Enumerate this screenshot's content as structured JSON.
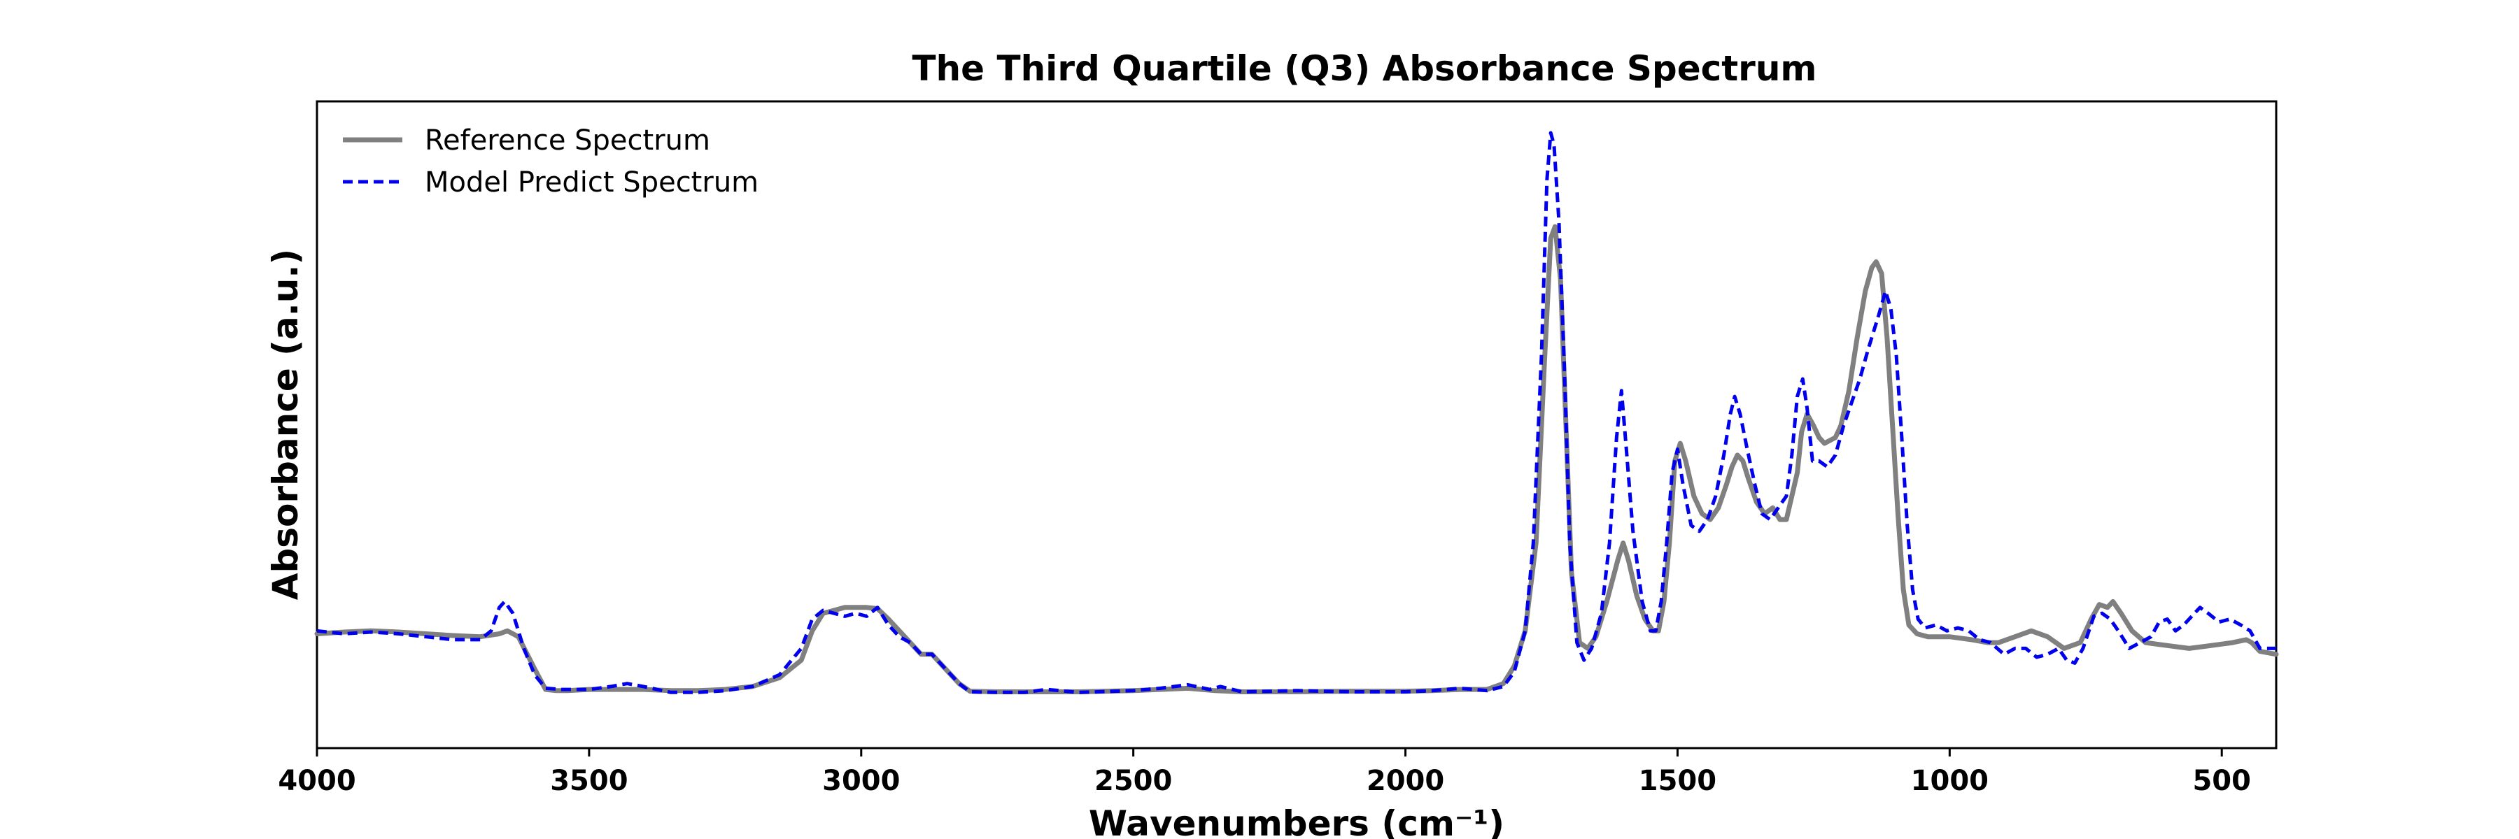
{
  "chart_data": {
    "type": "line",
    "title": "The Third Quartile (Q3) Absorbance Spectrum",
    "xlabel": "Wavenumbers (cm⁻¹)",
    "ylabel": "Absorbance (a.u.)",
    "xlim": [
      4000,
      400
    ],
    "ylim": [
      0,
      1.0
    ],
    "x_reversed": true,
    "y_ticks_visible": false,
    "xticks": [
      4000,
      3500,
      3000,
      2500,
      2000,
      1500,
      1000,
      500
    ],
    "xtick_labels": [
      "4000",
      "3500",
      "3000",
      "2500",
      "2000",
      "1500",
      "1000",
      "500"
    ],
    "grid": false,
    "legend": "top-left",
    "series": [
      {
        "name": "Reference Spectrum",
        "color": "#808080",
        "style": "solid",
        "points": [
          [
            4000,
            0.145
          ],
          [
            3950,
            0.148
          ],
          [
            3900,
            0.15
          ],
          [
            3850,
            0.148
          ],
          [
            3800,
            0.145
          ],
          [
            3750,
            0.142
          ],
          [
            3700,
            0.14
          ],
          [
            3665,
            0.145
          ],
          [
            3650,
            0.15
          ],
          [
            3630,
            0.14
          ],
          [
            3600,
            0.085
          ],
          [
            3580,
            0.05
          ],
          [
            3560,
            0.048
          ],
          [
            3540,
            0.048
          ],
          [
            3500,
            0.05
          ],
          [
            3450,
            0.05
          ],
          [
            3400,
            0.05
          ],
          [
            3350,
            0.048
          ],
          [
            3300,
            0.048
          ],
          [
            3250,
            0.05
          ],
          [
            3200,
            0.055
          ],
          [
            3150,
            0.07
          ],
          [
            3110,
            0.1
          ],
          [
            3090,
            0.15
          ],
          [
            3070,
            0.18
          ],
          [
            3050,
            0.185
          ],
          [
            3030,
            0.19
          ],
          [
            3010,
            0.19
          ],
          [
            2990,
            0.19
          ],
          [
            2970,
            0.188
          ],
          [
            2950,
            0.17
          ],
          [
            2930,
            0.15
          ],
          [
            2910,
            0.13
          ],
          [
            2890,
            0.11
          ],
          [
            2870,
            0.11
          ],
          [
            2850,
            0.09
          ],
          [
            2820,
            0.06
          ],
          [
            2800,
            0.047
          ],
          [
            2750,
            0.046
          ],
          [
            2700,
            0.046
          ],
          [
            2600,
            0.046
          ],
          [
            2500,
            0.048
          ],
          [
            2450,
            0.05
          ],
          [
            2400,
            0.052
          ],
          [
            2350,
            0.048
          ],
          [
            2300,
            0.046
          ],
          [
            2200,
            0.046
          ],
          [
            2100,
            0.047
          ],
          [
            2000,
            0.047
          ],
          [
            1950,
            0.048
          ],
          [
            1900,
            0.05
          ],
          [
            1850,
            0.05
          ],
          [
            1820,
            0.06
          ],
          [
            1800,
            0.09
          ],
          [
            1780,
            0.15
          ],
          [
            1760,
            0.3
          ],
          [
            1745,
            0.6
          ],
          [
            1733,
            0.82
          ],
          [
            1725,
            0.84
          ],
          [
            1715,
            0.75
          ],
          [
            1705,
            0.5
          ],
          [
            1695,
            0.25
          ],
          [
            1680,
            0.13
          ],
          [
            1665,
            0.12
          ],
          [
            1650,
            0.14
          ],
          [
            1630,
            0.2
          ],
          [
            1610,
            0.27
          ],
          [
            1600,
            0.3
          ],
          [
            1590,
            0.27
          ],
          [
            1575,
            0.21
          ],
          [
            1560,
            0.17
          ],
          [
            1545,
            0.15
          ],
          [
            1535,
            0.15
          ],
          [
            1525,
            0.2
          ],
          [
            1515,
            0.3
          ],
          [
            1505,
            0.44
          ],
          [
            1495,
            0.47
          ],
          [
            1485,
            0.44
          ],
          [
            1470,
            0.38
          ],
          [
            1455,
            0.35
          ],
          [
            1440,
            0.34
          ],
          [
            1425,
            0.36
          ],
          [
            1410,
            0.4
          ],
          [
            1400,
            0.43
          ],
          [
            1390,
            0.45
          ],
          [
            1380,
            0.44
          ],
          [
            1370,
            0.41
          ],
          [
            1355,
            0.37
          ],
          [
            1340,
            0.35
          ],
          [
            1325,
            0.36
          ],
          [
            1312,
            0.34
          ],
          [
            1300,
            0.34
          ],
          [
            1290,
            0.38
          ],
          [
            1280,
            0.42
          ],
          [
            1272,
            0.49
          ],
          [
            1262,
            0.52
          ],
          [
            1250,
            0.5
          ],
          [
            1240,
            0.48
          ],
          [
            1230,
            0.47
          ],
          [
            1210,
            0.48
          ],
          [
            1200,
            0.5
          ],
          [
            1185,
            0.56
          ],
          [
            1170,
            0.65
          ],
          [
            1155,
            0.73
          ],
          [
            1143,
            0.77
          ],
          [
            1135,
            0.78
          ],
          [
            1125,
            0.76
          ],
          [
            1115,
            0.65
          ],
          [
            1105,
            0.5
          ],
          [
            1095,
            0.35
          ],
          [
            1085,
            0.22
          ],
          [
            1075,
            0.16
          ],
          [
            1060,
            0.145
          ],
          [
            1040,
            0.14
          ],
          [
            1000,
            0.14
          ],
          [
            960,
            0.135
          ],
          [
            930,
            0.13
          ],
          [
            910,
            0.13
          ],
          [
            880,
            0.14
          ],
          [
            850,
            0.15
          ],
          [
            820,
            0.14
          ],
          [
            790,
            0.12
          ],
          [
            760,
            0.13
          ],
          [
            740,
            0.17
          ],
          [
            725,
            0.195
          ],
          [
            710,
            0.19
          ],
          [
            700,
            0.2
          ],
          [
            685,
            0.18
          ],
          [
            665,
            0.15
          ],
          [
            640,
            0.13
          ],
          [
            600,
            0.125
          ],
          [
            560,
            0.12
          ],
          [
            520,
            0.125
          ],
          [
            480,
            0.13
          ],
          [
            455,
            0.135
          ],
          [
            445,
            0.13
          ],
          [
            430,
            0.115
          ],
          [
            400,
            0.11
          ]
        ]
      },
      {
        "name": "Model Predict Spectrum",
        "color": "#0000ee",
        "style": "dashed",
        "points": [
          [
            4000,
            0.15
          ],
          [
            3950,
            0.145
          ],
          [
            3900,
            0.148
          ],
          [
            3850,
            0.145
          ],
          [
            3800,
            0.14
          ],
          [
            3750,
            0.135
          ],
          [
            3700,
            0.135
          ],
          [
            3680,
            0.15
          ],
          [
            3665,
            0.19
          ],
          [
            3655,
            0.2
          ],
          [
            3640,
            0.18
          ],
          [
            3620,
            0.12
          ],
          [
            3600,
            0.075
          ],
          [
            3580,
            0.052
          ],
          [
            3550,
            0.05
          ],
          [
            3500,
            0.05
          ],
          [
            3460,
            0.055
          ],
          [
            3430,
            0.06
          ],
          [
            3400,
            0.055
          ],
          [
            3350,
            0.045
          ],
          [
            3300,
            0.045
          ],
          [
            3250,
            0.048
          ],
          [
            3200,
            0.055
          ],
          [
            3150,
            0.075
          ],
          [
            3110,
            0.12
          ],
          [
            3090,
            0.17
          ],
          [
            3070,
            0.185
          ],
          [
            3050,
            0.18
          ],
          [
            3030,
            0.175
          ],
          [
            3010,
            0.18
          ],
          [
            2990,
            0.175
          ],
          [
            2970,
            0.19
          ],
          [
            2950,
            0.16
          ],
          [
            2930,
            0.14
          ],
          [
            2910,
            0.13
          ],
          [
            2890,
            0.11
          ],
          [
            2870,
            0.11
          ],
          [
            2850,
            0.09
          ],
          [
            2820,
            0.06
          ],
          [
            2800,
            0.046
          ],
          [
            2750,
            0.045
          ],
          [
            2700,
            0.045
          ],
          [
            2660,
            0.05
          ],
          [
            2600,
            0.045
          ],
          [
            2500,
            0.048
          ],
          [
            2450,
            0.052
          ],
          [
            2400,
            0.058
          ],
          [
            2360,
            0.05
          ],
          [
            2340,
            0.055
          ],
          [
            2300,
            0.046
          ],
          [
            2200,
            0.048
          ],
          [
            2100,
            0.046
          ],
          [
            2000,
            0.046
          ],
          [
            1950,
            0.048
          ],
          [
            1900,
            0.052
          ],
          [
            1850,
            0.048
          ],
          [
            1820,
            0.055
          ],
          [
            1800,
            0.08
          ],
          [
            1780,
            0.15
          ],
          [
            1765,
            0.3
          ],
          [
            1750,
            0.62
          ],
          [
            1740,
            0.92
          ],
          [
            1733,
            1.0
          ],
          [
            1727,
            0.98
          ],
          [
            1718,
            0.85
          ],
          [
            1708,
            0.6
          ],
          [
            1698,
            0.3
          ],
          [
            1685,
            0.13
          ],
          [
            1672,
            0.1
          ],
          [
            1658,
            0.12
          ],
          [
            1640,
            0.18
          ],
          [
            1625,
            0.3
          ],
          [
            1612,
            0.48
          ],
          [
            1603,
            0.56
          ],
          [
            1595,
            0.47
          ],
          [
            1582,
            0.32
          ],
          [
            1565,
            0.2
          ],
          [
            1550,
            0.15
          ],
          [
            1540,
            0.15
          ],
          [
            1530,
            0.2
          ],
          [
            1520,
            0.3
          ],
          [
            1510,
            0.42
          ],
          [
            1500,
            0.46
          ],
          [
            1490,
            0.4
          ],
          [
            1475,
            0.33
          ],
          [
            1460,
            0.32
          ],
          [
            1445,
            0.34
          ],
          [
            1430,
            0.38
          ],
          [
            1415,
            0.45
          ],
          [
            1403,
            0.52
          ],
          [
            1395,
            0.55
          ],
          [
            1385,
            0.52
          ],
          [
            1372,
            0.46
          ],
          [
            1358,
            0.4
          ],
          [
            1345,
            0.35
          ],
          [
            1330,
            0.34
          ],
          [
            1315,
            0.36
          ],
          [
            1300,
            0.38
          ],
          [
            1290,
            0.45
          ],
          [
            1280,
            0.55
          ],
          [
            1270,
            0.58
          ],
          [
            1262,
            0.53
          ],
          [
            1252,
            0.44
          ],
          [
            1240,
            0.44
          ],
          [
            1225,
            0.43
          ],
          [
            1210,
            0.45
          ],
          [
            1195,
            0.5
          ],
          [
            1180,
            0.54
          ],
          [
            1165,
            0.58
          ],
          [
            1150,
            0.63
          ],
          [
            1130,
            0.69
          ],
          [
            1118,
            0.73
          ],
          [
            1108,
            0.7
          ],
          [
            1098,
            0.62
          ],
          [
            1088,
            0.48
          ],
          [
            1078,
            0.33
          ],
          [
            1068,
            0.22
          ],
          [
            1058,
            0.17
          ],
          [
            1045,
            0.155
          ],
          [
            1025,
            0.16
          ],
          [
            1005,
            0.15
          ],
          [
            985,
            0.155
          ],
          [
            965,
            0.15
          ],
          [
            945,
            0.135
          ],
          [
            925,
            0.13
          ],
          [
            900,
            0.11
          ],
          [
            880,
            0.12
          ],
          [
            860,
            0.12
          ],
          [
            840,
            0.105
          ],
          [
            820,
            0.11
          ],
          [
            800,
            0.12
          ],
          [
            785,
            0.1
          ],
          [
            770,
            0.095
          ],
          [
            755,
            0.12
          ],
          [
            735,
            0.175
          ],
          [
            720,
            0.18
          ],
          [
            705,
            0.17
          ],
          [
            690,
            0.15
          ],
          [
            670,
            0.12
          ],
          [
            650,
            0.13
          ],
          [
            630,
            0.14
          ],
          [
            615,
            0.165
          ],
          [
            600,
            0.17
          ],
          [
            585,
            0.15
          ],
          [
            570,
            0.16
          ],
          [
            555,
            0.175
          ],
          [
            540,
            0.19
          ],
          [
            525,
            0.18
          ],
          [
            505,
            0.165
          ],
          [
            485,
            0.17
          ],
          [
            465,
            0.16
          ],
          [
            448,
            0.15
          ],
          [
            430,
            0.12
          ],
          [
            415,
            0.12
          ],
          [
            400,
            0.12
          ]
        ]
      }
    ]
  }
}
